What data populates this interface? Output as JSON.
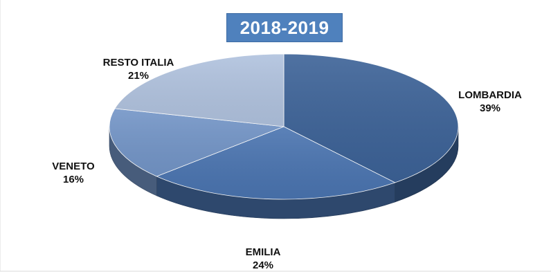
{
  "chart_data": {
    "type": "pie",
    "title": "2018-2019",
    "slices": [
      {
        "label": "LOMBARDIA",
        "value_label": "39%",
        "value": 39,
        "color": "#3c6297"
      },
      {
        "label": "EMILIA",
        "value_label": "24%",
        "value": 24,
        "color": "#4a74b0"
      },
      {
        "label": "VENETO",
        "value_label": "16%",
        "value": 16,
        "color": "#7395c7"
      },
      {
        "label": "RESTO ITALIA",
        "value_label": "21%",
        "value": 21,
        "color": "#b0c2de"
      }
    ],
    "legend": "none",
    "three_d": true
  }
}
